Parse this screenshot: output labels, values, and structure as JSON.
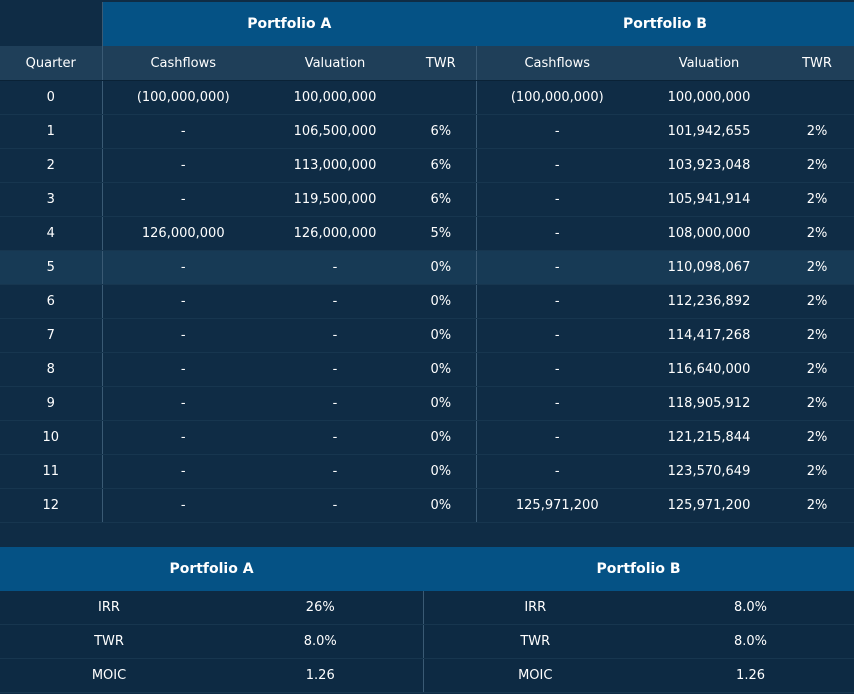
{
  "main_table": {
    "groups": [
      "Portfolio A",
      "Portfolio B"
    ],
    "columns": [
      "Quarter",
      "Cashflows",
      "Valuation",
      "TWR",
      "Cashflows",
      "Valuation",
      "TWR"
    ],
    "rows": [
      [
        "0",
        "(100,000,000)",
        "100,000,000",
        "",
        "(100,000,000)",
        "100,000,000",
        ""
      ],
      [
        "1",
        "-",
        "106,500,000",
        "6%",
        "-",
        "101,942,655",
        "2%"
      ],
      [
        "2",
        "-",
        "113,000,000",
        "6%",
        "-",
        "103,923,048",
        "2%"
      ],
      [
        "3",
        "-",
        "119,500,000",
        "6%",
        "-",
        "105,941,914",
        "2%"
      ],
      [
        "4",
        "126,000,000",
        "126,000,000",
        "5%",
        "-",
        "108,000,000",
        "2%"
      ],
      [
        "5",
        "-",
        "-",
        "0%",
        "-",
        "110,098,067",
        "2%"
      ],
      [
        "6",
        "-",
        "-",
        "0%",
        "-",
        "112,236,892",
        "2%"
      ],
      [
        "7",
        "-",
        "-",
        "0%",
        "-",
        "114,417,268",
        "2%"
      ],
      [
        "8",
        "-",
        "-",
        "0%",
        "-",
        "116,640,000",
        "2%"
      ],
      [
        "9",
        "-",
        "-",
        "0%",
        "-",
        "118,905,912",
        "2%"
      ],
      [
        "10",
        "-",
        "-",
        "0%",
        "-",
        "121,215,844",
        "2%"
      ],
      [
        "11",
        "-",
        "-",
        "0%",
        "-",
        "123,570,649",
        "2%"
      ],
      [
        "12",
        "-",
        "-",
        "0%",
        "125,971,200",
        "125,971,200",
        "2%"
      ]
    ]
  },
  "summary_table": {
    "headers": [
      "Portfolio A",
      "Portfolio B"
    ],
    "rows": [
      [
        "IRR",
        "26%",
        "IRR",
        "8.0%"
      ],
      [
        "TWR",
        "8.0%",
        "TWR",
        "8.0%"
      ],
      [
        "MOIC",
        "1.26",
        "MOIC",
        "1.26"
      ]
    ]
  },
  "colors": {
    "page_background": "#0f2c45",
    "header_blue": "#055285",
    "subheader": "#1f3f59",
    "highlight_row": "#173a55"
  }
}
